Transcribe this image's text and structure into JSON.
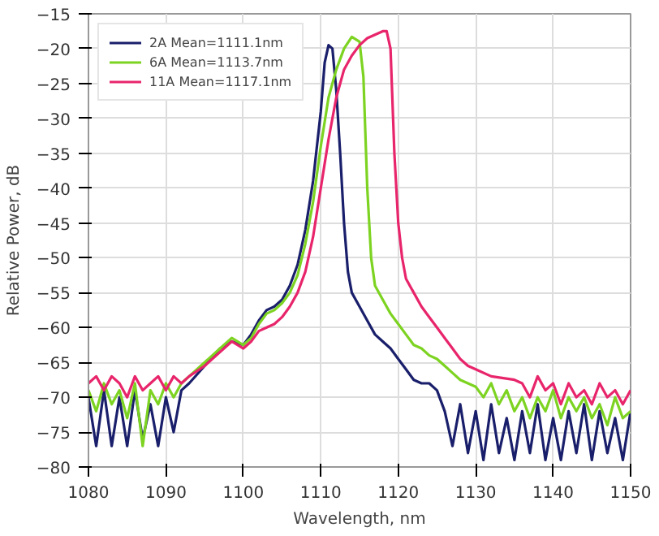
{
  "chart_data": {
    "type": "line",
    "xlabel": "Wavelength, nm",
    "ylabel": "Relative Power, dB",
    "xlim": [
      1080,
      1150
    ],
    "ylim": [
      -80,
      -15
    ],
    "xticks": [
      1080,
      1090,
      1100,
      1110,
      1120,
      1130,
      1140,
      1150
    ],
    "yticks": [
      -80,
      -75,
      -70,
      -65,
      -60,
      -55,
      -50,
      -45,
      -40,
      -35,
      -30,
      -25,
      -20,
      -15
    ],
    "grid": true,
    "legend": "top left",
    "line_style": "solid",
    "marker": "none",
    "series": [
      {
        "name": "2A Mean=1111.1nm",
        "color": "#1a1f6b",
        "x": [
          1080,
          1081,
          1082,
          1083,
          1084,
          1085,
          1086,
          1087,
          1088,
          1089,
          1090,
          1091,
          1092,
          1093,
          1095,
          1097,
          1098.5,
          1100,
          1101,
          1102,
          1103,
          1104,
          1105,
          1106,
          1107,
          1108,
          1109,
          1110,
          1110.5,
          1111,
          1111.5,
          1112,
          1112.5,
          1113,
          1113.5,
          1114,
          1115,
          1116,
          1117,
          1118,
          1119,
          1120,
          1121,
          1122,
          1123,
          1124,
          1125,
          1126,
          1127,
          1128,
          1129,
          1130,
          1131,
          1132,
          1133,
          1134,
          1135,
          1136,
          1137,
          1138,
          1139,
          1140,
          1141,
          1142,
          1143,
          1144,
          1145,
          1146,
          1147,
          1148,
          1149,
          1150
        ],
        "values": [
          -70,
          -77,
          -69,
          -77,
          -70,
          -77,
          -69,
          -76,
          -71,
          -77,
          -70,
          -75,
          -69,
          -68,
          -65.5,
          -63,
          -62,
          -62.5,
          -61,
          -59,
          -57.5,
          -57,
          -56,
          -54,
          -51,
          -46,
          -39,
          -29,
          -22,
          -19.5,
          -20,
          -26,
          -35,
          -45,
          -52,
          -55,
          -57,
          -59,
          -61,
          -62,
          -63,
          -64.5,
          -66,
          -67.5,
          -68,
          -68,
          -69,
          -72,
          -77,
          -71,
          -78,
          -72,
          -79,
          -71,
          -78,
          -73,
          -79,
          -72,
          -78,
          -71,
          -79,
          -73,
          -79,
          -72,
          -78,
          -71,
          -79,
          -72,
          -78,
          -73,
          -79,
          -72
        ]
      },
      {
        "name": "6A Mean=1113.7nm",
        "color": "#7dd321",
        "x": [
          1080,
          1081,
          1082,
          1083,
          1084,
          1085,
          1086,
          1087,
          1088,
          1089,
          1090,
          1091,
          1092,
          1093,
          1095,
          1097,
          1098.5,
          1100,
          1101,
          1102,
          1103,
          1104,
          1105,
          1106,
          1107,
          1108,
          1109,
          1110,
          1111,
          1112,
          1113,
          1114,
          1115,
          1115.5,
          1116,
          1116.5,
          1117,
          1118,
          1119,
          1120,
          1121,
          1122,
          1123,
          1124,
          1125,
          1126,
          1127,
          1128,
          1130,
          1131,
          1132,
          1133,
          1134,
          1135,
          1136,
          1137,
          1138,
          1139,
          1140,
          1141,
          1142,
          1143,
          1144,
          1145,
          1146,
          1147,
          1148,
          1149,
          1150
        ],
        "values": [
          -69,
          -72,
          -68,
          -71,
          -69,
          -73,
          -68,
          -77,
          -69,
          -71,
          -68,
          -70,
          -68,
          -67,
          -65,
          -63,
          -61.5,
          -62.5,
          -61.5,
          -59.5,
          -58,
          -57.5,
          -56.5,
          -55,
          -52.5,
          -48,
          -42,
          -34,
          -27,
          -23,
          -20,
          -18.3,
          -19,
          -24,
          -40,
          -50,
          -54,
          -56,
          -58,
          -59.5,
          -61,
          -62.5,
          -63,
          -64,
          -64.5,
          -65.5,
          -66.5,
          -67.5,
          -68.5,
          -70,
          -68,
          -71,
          -69,
          -72,
          -70,
          -73,
          -70,
          -72,
          -69,
          -73,
          -70,
          -72,
          -70,
          -73,
          -71,
          -74,
          -70,
          -73,
          -72
        ]
      },
      {
        "name": "11A Mean=1117.1nm",
        "color": "#e8256b",
        "x": [
          1080,
          1081,
          1082,
          1083,
          1084,
          1085,
          1086,
          1087,
          1088,
          1089,
          1090,
          1091,
          1092,
          1093,
          1095,
          1097,
          1098.5,
          1100,
          1101,
          1102,
          1103,
          1104,
          1105,
          1106,
          1107,
          1108,
          1109,
          1110,
          1111,
          1112,
          1113,
          1114,
          1115,
          1116,
          1117,
          1118,
          1118.5,
          1119,
          1119.5,
          1120,
          1120.5,
          1121,
          1122,
          1123,
          1124,
          1125,
          1126,
          1127,
          1128,
          1129,
          1130,
          1132,
          1135,
          1136,
          1137,
          1138,
          1139,
          1140,
          1141,
          1142,
          1143,
          1144,
          1145,
          1146,
          1147,
          1148,
          1149,
          1150
        ],
        "values": [
          -68,
          -67,
          -69,
          -67,
          -68,
          -70,
          -67,
          -69,
          -68,
          -67,
          -69,
          -67,
          -68,
          -67,
          -65.5,
          -63.5,
          -62,
          -63,
          -62,
          -60.5,
          -60,
          -59.5,
          -58.5,
          -57,
          -55,
          -52,
          -47,
          -40,
          -33,
          -27,
          -23,
          -21,
          -19.5,
          -18.5,
          -18,
          -17.5,
          -17.5,
          -20,
          -35,
          -45,
          -50,
          -53,
          -55,
          -57,
          -58.5,
          -60,
          -61.5,
          -63,
          -64.5,
          -65.5,
          -66,
          -67,
          -67.5,
          -68,
          -70,
          -67,
          -69,
          -68,
          -71,
          -68,
          -70,
          -69,
          -71,
          -68,
          -70,
          -69,
          -71,
          -69
        ]
      }
    ]
  }
}
